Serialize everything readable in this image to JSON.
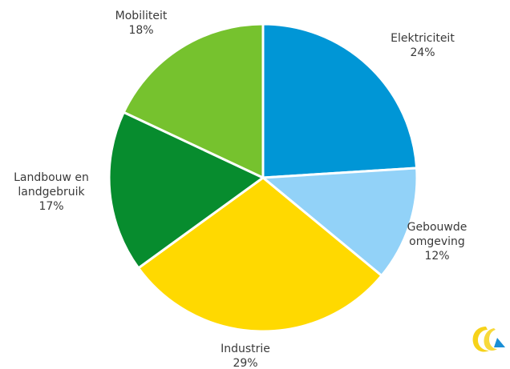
{
  "chart_data": {
    "type": "pie",
    "title": "",
    "start_angle_deg": 0,
    "direction": "clockwise",
    "slices": [
      {
        "name": "Elektriciteit",
        "label_lines": [
          "Elektriciteit",
          "24%"
        ],
        "value": 24,
        "color": "#0096d6"
      },
      {
        "name": "Gebouwde omgeving",
        "label_lines": [
          "Gebouwde",
          "omgeving",
          "12%"
        ],
        "value": 12,
        "color": "#92d2f8"
      },
      {
        "name": "Industrie",
        "label_lines": [
          "Industrie",
          "29%"
        ],
        "value": 29,
        "color": "#ffd900"
      },
      {
        "name": "Landbouw en landgebruik",
        "label_lines": [
          "Landbouw en",
          "landgebruik",
          "17%"
        ],
        "value": 17,
        "color": "#078c2e"
      },
      {
        "name": "Mobiliteit",
        "label_lines": [
          "Mobiliteit",
          "18%"
        ],
        "value": 18,
        "color": "#76c22e"
      }
    ],
    "legend": "none",
    "labels": "outside"
  },
  "logo": {
    "icon": "brand-logo-icon",
    "colors": [
      "#f6d21a",
      "#1a8fd6"
    ]
  }
}
